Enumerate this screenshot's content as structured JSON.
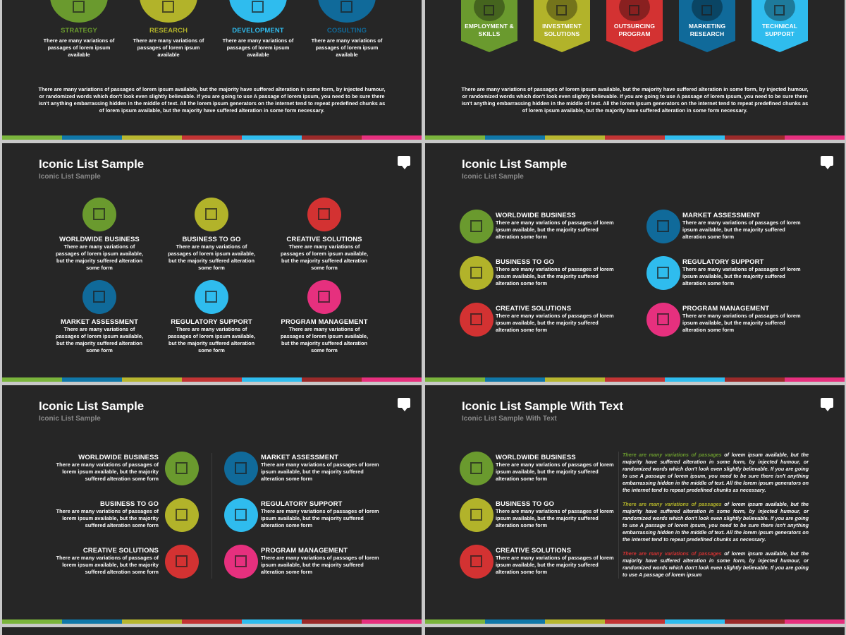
{
  "colors": {
    "green": "#6a9a2e",
    "olive": "#b2b32a",
    "sky": "#2fbcee",
    "teal": "#106a9a",
    "red": "#d33232",
    "pink": "#e6307e",
    "bar": [
      "#7ab43c",
      "#1077a8",
      "#b7b630",
      "#c23434",
      "#2fbcee",
      "#9a2a2a",
      "#e6307e"
    ]
  },
  "slide1": {
    "items": [
      {
        "label": "STRATEGY",
        "desc": "There are many variations of passages of lorem ipsum available",
        "color": "#6a9a2e"
      },
      {
        "label": "RESEARCH",
        "desc": "There are many variations of passages of lorem ipsum available",
        "color": "#b2b32a"
      },
      {
        "label": "DEVELOPMENT",
        "desc": "There are many variations of passages of lorem ipsum available",
        "color": "#2fbcee"
      },
      {
        "label": "COSULTING",
        "desc": "There are many variations of passages of lorem ipsum available",
        "color": "#106a9a"
      }
    ],
    "paragraph": "There are many variations of passages of lorem ipsum available, but the majority have suffered alteration in some form, by injected humour, or randomized words which don't look even slightly believable. If you are going to use A passage of lorem ipsum, you need to be sure there isn't anything embarrassing hidden in the middle of text. All the lorem ipsum generators on the internet tend to repeat predefined chunks as of lorem ipsum available, but the majority have suffered alteration in some form necessary."
  },
  "slide2": {
    "items": [
      {
        "label": "EMPLOYMENT & SKILLS",
        "color": "#6a9a2e"
      },
      {
        "label": "INVESTMENT SOLUTIONS",
        "color": "#b2b32a"
      },
      {
        "label": "OUTSURCING PROGRAM",
        "color": "#d33232"
      },
      {
        "label": "MARKETING RESEARCH",
        "color": "#106a9a"
      },
      {
        "label": "TECHNICAL SUPPORT",
        "color": "#2fbcee"
      }
    ],
    "paragraph": "There are many variations of passages of lorem ipsum available, but the majority have suffered alteration in some form, by injected humour, or randomized words which don't look even slightly believable. If you are going to use A passage of lorem ipsum, you need to be sure there isn't anything embarrassing hidden in the middle of text. All the lorem ipsum generators on the internet tend to repeat predefined chunks as of lorem ipsum available, but the majority have suffered alteration in some form necessary."
  },
  "slide3": {
    "title": "Iconic List Sample",
    "subtitle": "Iconic List Sample",
    "items": [
      {
        "label": "WORLDWIDE BUSINESS",
        "desc": "There are many variations of passages of lorem ipsum available, but the majority suffered alteration some form",
        "color": "#6a9a2e"
      },
      {
        "label": "BUSINESS TO GO",
        "desc": "There are many variations of passages of lorem ipsum available, but the majority suffered alteration some form",
        "color": "#b2b32a"
      },
      {
        "label": "CREATIVE SOLUTIONS",
        "desc": "There are many variations of passages of lorem ipsum available, but the majority suffered alteration some form",
        "color": "#d33232"
      },
      {
        "label": "MARKET ASSESSMENT",
        "desc": "There are many variations of passages of lorem ipsum available, but the majority suffered alteration some form",
        "color": "#106a9a"
      },
      {
        "label": "REGULATORY SUPPORT",
        "desc": "There are many variations of passages of lorem ipsum available, but the majority suffered alteration some form",
        "color": "#2fbcee"
      },
      {
        "label": "PROGRAM MANAGEMENT",
        "desc": "There are many variations of passages of lorem ipsum available, but the majority suffered alteration some form",
        "color": "#e6307e"
      }
    ]
  },
  "slide4": {
    "title": "Iconic List Sample",
    "subtitle": "Iconic List Sample",
    "items": [
      {
        "label": "WORLDWIDE BUSINESS",
        "desc": "There are many variations of passages of lorem ipsum available, but the majority suffered alteration some form",
        "color": "#6a9a2e"
      },
      {
        "label": "BUSINESS TO GO",
        "desc": "There are many variations of passages of lorem ipsum available, but the majority suffered alteration some form",
        "color": "#b2b32a"
      },
      {
        "label": "CREATIVE SOLUTIONS",
        "desc": "There are many variations of passages of lorem ipsum available, but the majority suffered alteration some form",
        "color": "#d33232"
      },
      {
        "label": "MARKET ASSESSMENT",
        "desc": "There are many variations of passages of lorem ipsum available, but the majority suffered alteration some form",
        "color": "#106a9a"
      },
      {
        "label": "REGULATORY SUPPORT",
        "desc": "There are many variations of passages of lorem ipsum available, but the majority suffered alteration some form",
        "color": "#2fbcee"
      },
      {
        "label": "PROGRAM MANAGEMENT",
        "desc": "There are many variations of passages of lorem ipsum available, but the majority suffered alteration some form",
        "color": "#e6307e"
      }
    ]
  },
  "slide5": {
    "title": "Iconic List Sample",
    "subtitle": "Iconic List Sample",
    "items": [
      {
        "label": "WORLDWIDE BUSINESS",
        "desc": "There are many variations of passages of lorem ipsum available, but the majority suffered alteration some form",
        "color": "#6a9a2e"
      },
      {
        "label": "BUSINESS TO GO",
        "desc": "There are many variations of passages of lorem ipsum available, but the majority suffered alteration some form",
        "color": "#b2b32a"
      },
      {
        "label": "CREATIVE SOLUTIONS",
        "desc": "There are many variations of passages of lorem ipsum available, but the majority suffered alteration some form",
        "color": "#d33232"
      },
      {
        "label": "MARKET ASSESSMENT",
        "desc": "There are many variations of passages of lorem ipsum available, but the majority suffered alteration some form",
        "color": "#106a9a"
      },
      {
        "label": "REGULATORY SUPPORT",
        "desc": "There are many variations of passages of lorem ipsum available, but the majority suffered alteration some form",
        "color": "#2fbcee"
      },
      {
        "label": "PROGRAM MANAGEMENT",
        "desc": "There are many variations of passages of lorem ipsum available, but the majority suffered alteration some form",
        "color": "#e6307e"
      }
    ]
  },
  "slide6": {
    "title": "Iconic List Sample With Text",
    "subtitle": "Iconic List Sample With Text",
    "items": [
      {
        "label": "WORLDWIDE BUSINESS",
        "desc": "There are many variations of passages of lorem ipsum available, but the majority suffered alteration some form",
        "color": "#6a9a2e"
      },
      {
        "label": "BUSINESS TO GO",
        "desc": "There are many variations of passages of lorem ipsum available, but the majority suffered alteration some form",
        "color": "#b2b32a"
      },
      {
        "label": "CREATIVE SOLUTIONS",
        "desc": "There are many variations of passages of lorem ipsum available, but the majority suffered alteration some form",
        "color": "#d33232"
      }
    ],
    "paragraphs": [
      {
        "lead": "There are many variations of passages",
        "rest": " of lorem ipsum available, but the majority have suffered alteration in some form, by injected humour, or randomized words which don't look even slightly believable. If you are going to use A passage of lorem ipsum, you need to be sure there isn't anything embarrassing hidden in the middle of text. All the lorem ipsum generators on the internet tend to repeat predefined chunks as necessary.",
        "lead_color": "#6a9a2e"
      },
      {
        "lead": "There are many variations of passages",
        "rest": " of lorem ipsum available, but the majority have suffered alteration in some form, by injected humour, or randomized words which don't look even slightly believable. If you are going to use A passage of lorem ipsum, you need to be sure there isn't anything embarrassing hidden in the middle of text. All the lorem ipsum generators on the internet tend to repeat predefined chunks as necessary.",
        "lead_color": "#b2b32a"
      },
      {
        "lead": "There are many variations of passages",
        "rest": " of lorem ipsum available, but the majority have suffered alteration in some form, by injected humour, or randomized words which don't look even slightly believable. If you are going to use A passage of lorem ipsum",
        "lead_color": "#d33232"
      }
    ]
  }
}
